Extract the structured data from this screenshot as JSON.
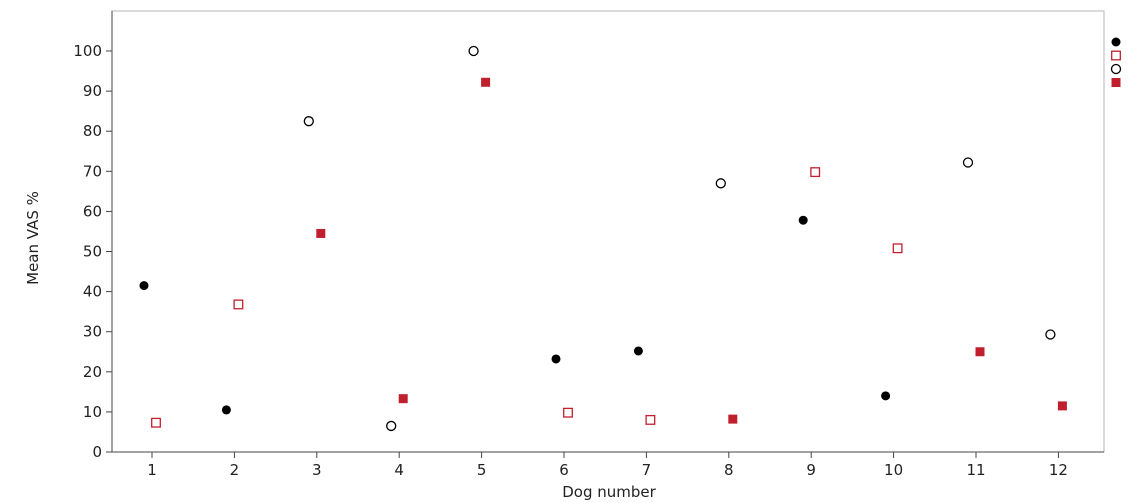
{
  "chart_data": {
    "type": "scatter",
    "title": "",
    "xlabel": "Dog number",
    "ylabel": "Mean VAS %",
    "xlim": [
      0.5,
      12.5
    ],
    "ylim": [
      0,
      100
    ],
    "x_categories": [
      "1",
      "2",
      "3",
      "4",
      "5",
      "6",
      "7",
      "8",
      "9",
      "10",
      "11",
      "12"
    ],
    "y_ticks": [
      0,
      10,
      20,
      30,
      40,
      50,
      60,
      70,
      80,
      90,
      100
    ],
    "grid": false,
    "legend_position": "right",
    "series": [
      {
        "marker": "filled-circle",
        "color": "#000000",
        "points": [
          {
            "x": 1,
            "y": 41.5
          },
          {
            "x": 2,
            "y": 10.5
          },
          {
            "x": 6,
            "y": 23.2
          },
          {
            "x": 7,
            "y": 25.2
          },
          {
            "x": 9,
            "y": 57.8
          },
          {
            "x": 10,
            "y": 14
          }
        ]
      },
      {
        "marker": "open-square",
        "color": "#c0202e",
        "points": [
          {
            "x": 1,
            "y": 7.3
          },
          {
            "x": 2,
            "y": 36.8
          },
          {
            "x": 6,
            "y": 9.8
          },
          {
            "x": 7,
            "y": 8
          },
          {
            "x": 9,
            "y": 69.8
          },
          {
            "x": 10,
            "y": 50.8
          }
        ]
      },
      {
        "marker": "open-circle",
        "color": "#000000",
        "points": [
          {
            "x": 3,
            "y": 82.5
          },
          {
            "x": 4,
            "y": 6.5
          },
          {
            "x": 5,
            "y": 100
          },
          {
            "x": 8,
            "y": 67
          },
          {
            "x": 11,
            "y": 72.2
          },
          {
            "x": 12,
            "y": 29.3
          }
        ]
      },
      {
        "marker": "filled-square",
        "color": "#c0202e",
        "points": [
          {
            "x": 3,
            "y": 54.5
          },
          {
            "x": 4,
            "y": 13.3
          },
          {
            "x": 5,
            "y": 92.2
          },
          {
            "x": 8,
            "y": 8.2
          },
          {
            "x": 11,
            "y": 25
          },
          {
            "x": 12,
            "y": 11.5
          }
        ]
      }
    ]
  }
}
